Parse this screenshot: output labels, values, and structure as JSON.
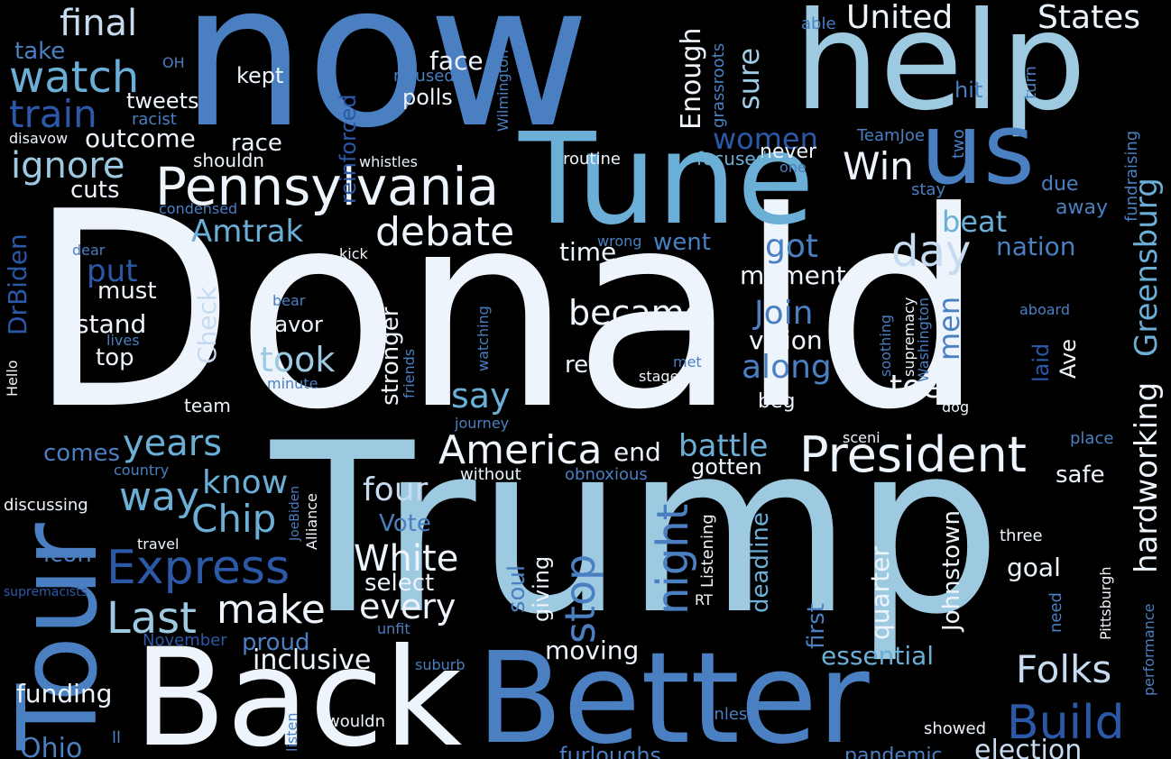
{
  "words": {
    "donald": "Donald",
    "trump": "Trump",
    "now": "now",
    "help": "help",
    "tune": "Tune",
    "us": "us",
    "back": "Back",
    "better": "Better",
    "tour": "Tour",
    "pennsylvania": "Pennsylvania",
    "debate": "debate",
    "president": "President",
    "america": "America",
    "express": "Express",
    "chip": "Chip",
    "last": "Last",
    "make": "make",
    "build": "Build",
    "folks": "Folks",
    "white": "White",
    "every": "every",
    "watch": "watch",
    "train": "train",
    "final": "final",
    "ignore": "ignore",
    "united": "United",
    "states": "States",
    "win": "Win",
    "day": "day",
    "became": "became",
    "took": "took",
    "years": "years",
    "way": "way",
    "four": "four",
    "night": "night",
    "stop": "stop",
    "join": "Join",
    "along": "along",
    "battle": "battle",
    "end": "end",
    "know": "know",
    "greensburg": "Greensburg",
    "hardworking": "hardworking",
    "enough": "Enough",
    "sure": "sure",
    "women": "women",
    "men": "men",
    "beat": "beat",
    "nation": "nation",
    "got": "got",
    "moments": "moments",
    "vision": "vision",
    "toe": "toe",
    "say": "say",
    "amtrak": "Amtrak",
    "put": "put",
    "must": "must",
    "stand": "stand",
    "top": "top",
    "favor": "favor",
    "kept": "kept",
    "face": "face",
    "polls": "polls",
    "race": "race",
    "outcome": "outcome",
    "tweets": "tweets",
    "take": "take",
    "cuts": "cuts",
    "shouldn": "shouldn",
    "time": "time",
    "went": "went",
    "re": "re",
    "team": "team",
    "beg": "beg",
    "comes": "comes",
    "vote": "Vote",
    "icon": "icon",
    "select": "select",
    "moving": "moving",
    "inclusive": "inclusive",
    "funding": "funding",
    "ohio": "Ohio",
    "proud": "proud",
    "essential": "essential",
    "goal": "goal",
    "safe": "safe",
    "gotten": "gotten",
    "quarter": "quarter",
    "johnstown": "Johnstown",
    "deadline": "deadline",
    "first": "first",
    "giving": "giving",
    "soul": "soul",
    "stronger": "stronger",
    "check": "Check",
    "drbiden": "DrBiden",
    "reinforced": "reinforced",
    "laid": "laid",
    "ave": "Ave",
    "due": "due",
    "away": "away",
    "hit": "hit",
    "stay": "stay",
    "fundraising": "fundraising",
    "never": "never",
    "focused": "focused",
    "routine": "routine",
    "one": "one",
    "two": "two",
    "teamjoe": "TeamJoe",
    "turn": "turn",
    "able": "able",
    "grassroots": "grassroots",
    "wilmington": "Wilmington",
    "refused": "refused",
    "racist": "racist",
    "oh": "OH",
    "disavow": "disavow",
    "whistles": "whistles",
    "condensed": "condensed",
    "dear": "dear",
    "kick": "kick",
    "wrong": "wrong",
    "bear": "bear",
    "watching": "watching",
    "friends": "friends",
    "minute": "minute",
    "lives": "lives",
    "hello": "Hello",
    "journey": "journey",
    "met": "met",
    "stage": "stage",
    "dog": "dog",
    "supremacy": "supremacy",
    "washington": "Washington",
    "soothing": "soothing",
    "aboard": "aboard",
    "sceni": "sceni",
    "place": "place",
    "need": "need",
    "pittsburgh": "Pittsburgh",
    "three": "three",
    "performance": "performance",
    "unless": "unless",
    "showed": "showed",
    "election": "election",
    "pandemic": "pandemic",
    "furloughs": "furloughs",
    "listen": "listen",
    "wouldn": "wouldn",
    "ll": "ll",
    "suburb": "suburb",
    "unfit": "unfit",
    "november": "November",
    "supremacists": "supremacists",
    "travel": "travel",
    "discussing": "discussing",
    "country": "country",
    "alliance": "Alliance",
    "joebiden": "JoeBiden",
    "listening": "Listening",
    "rt": "RT",
    "without": "without",
    "obnoxious": "obnoxious"
  }
}
